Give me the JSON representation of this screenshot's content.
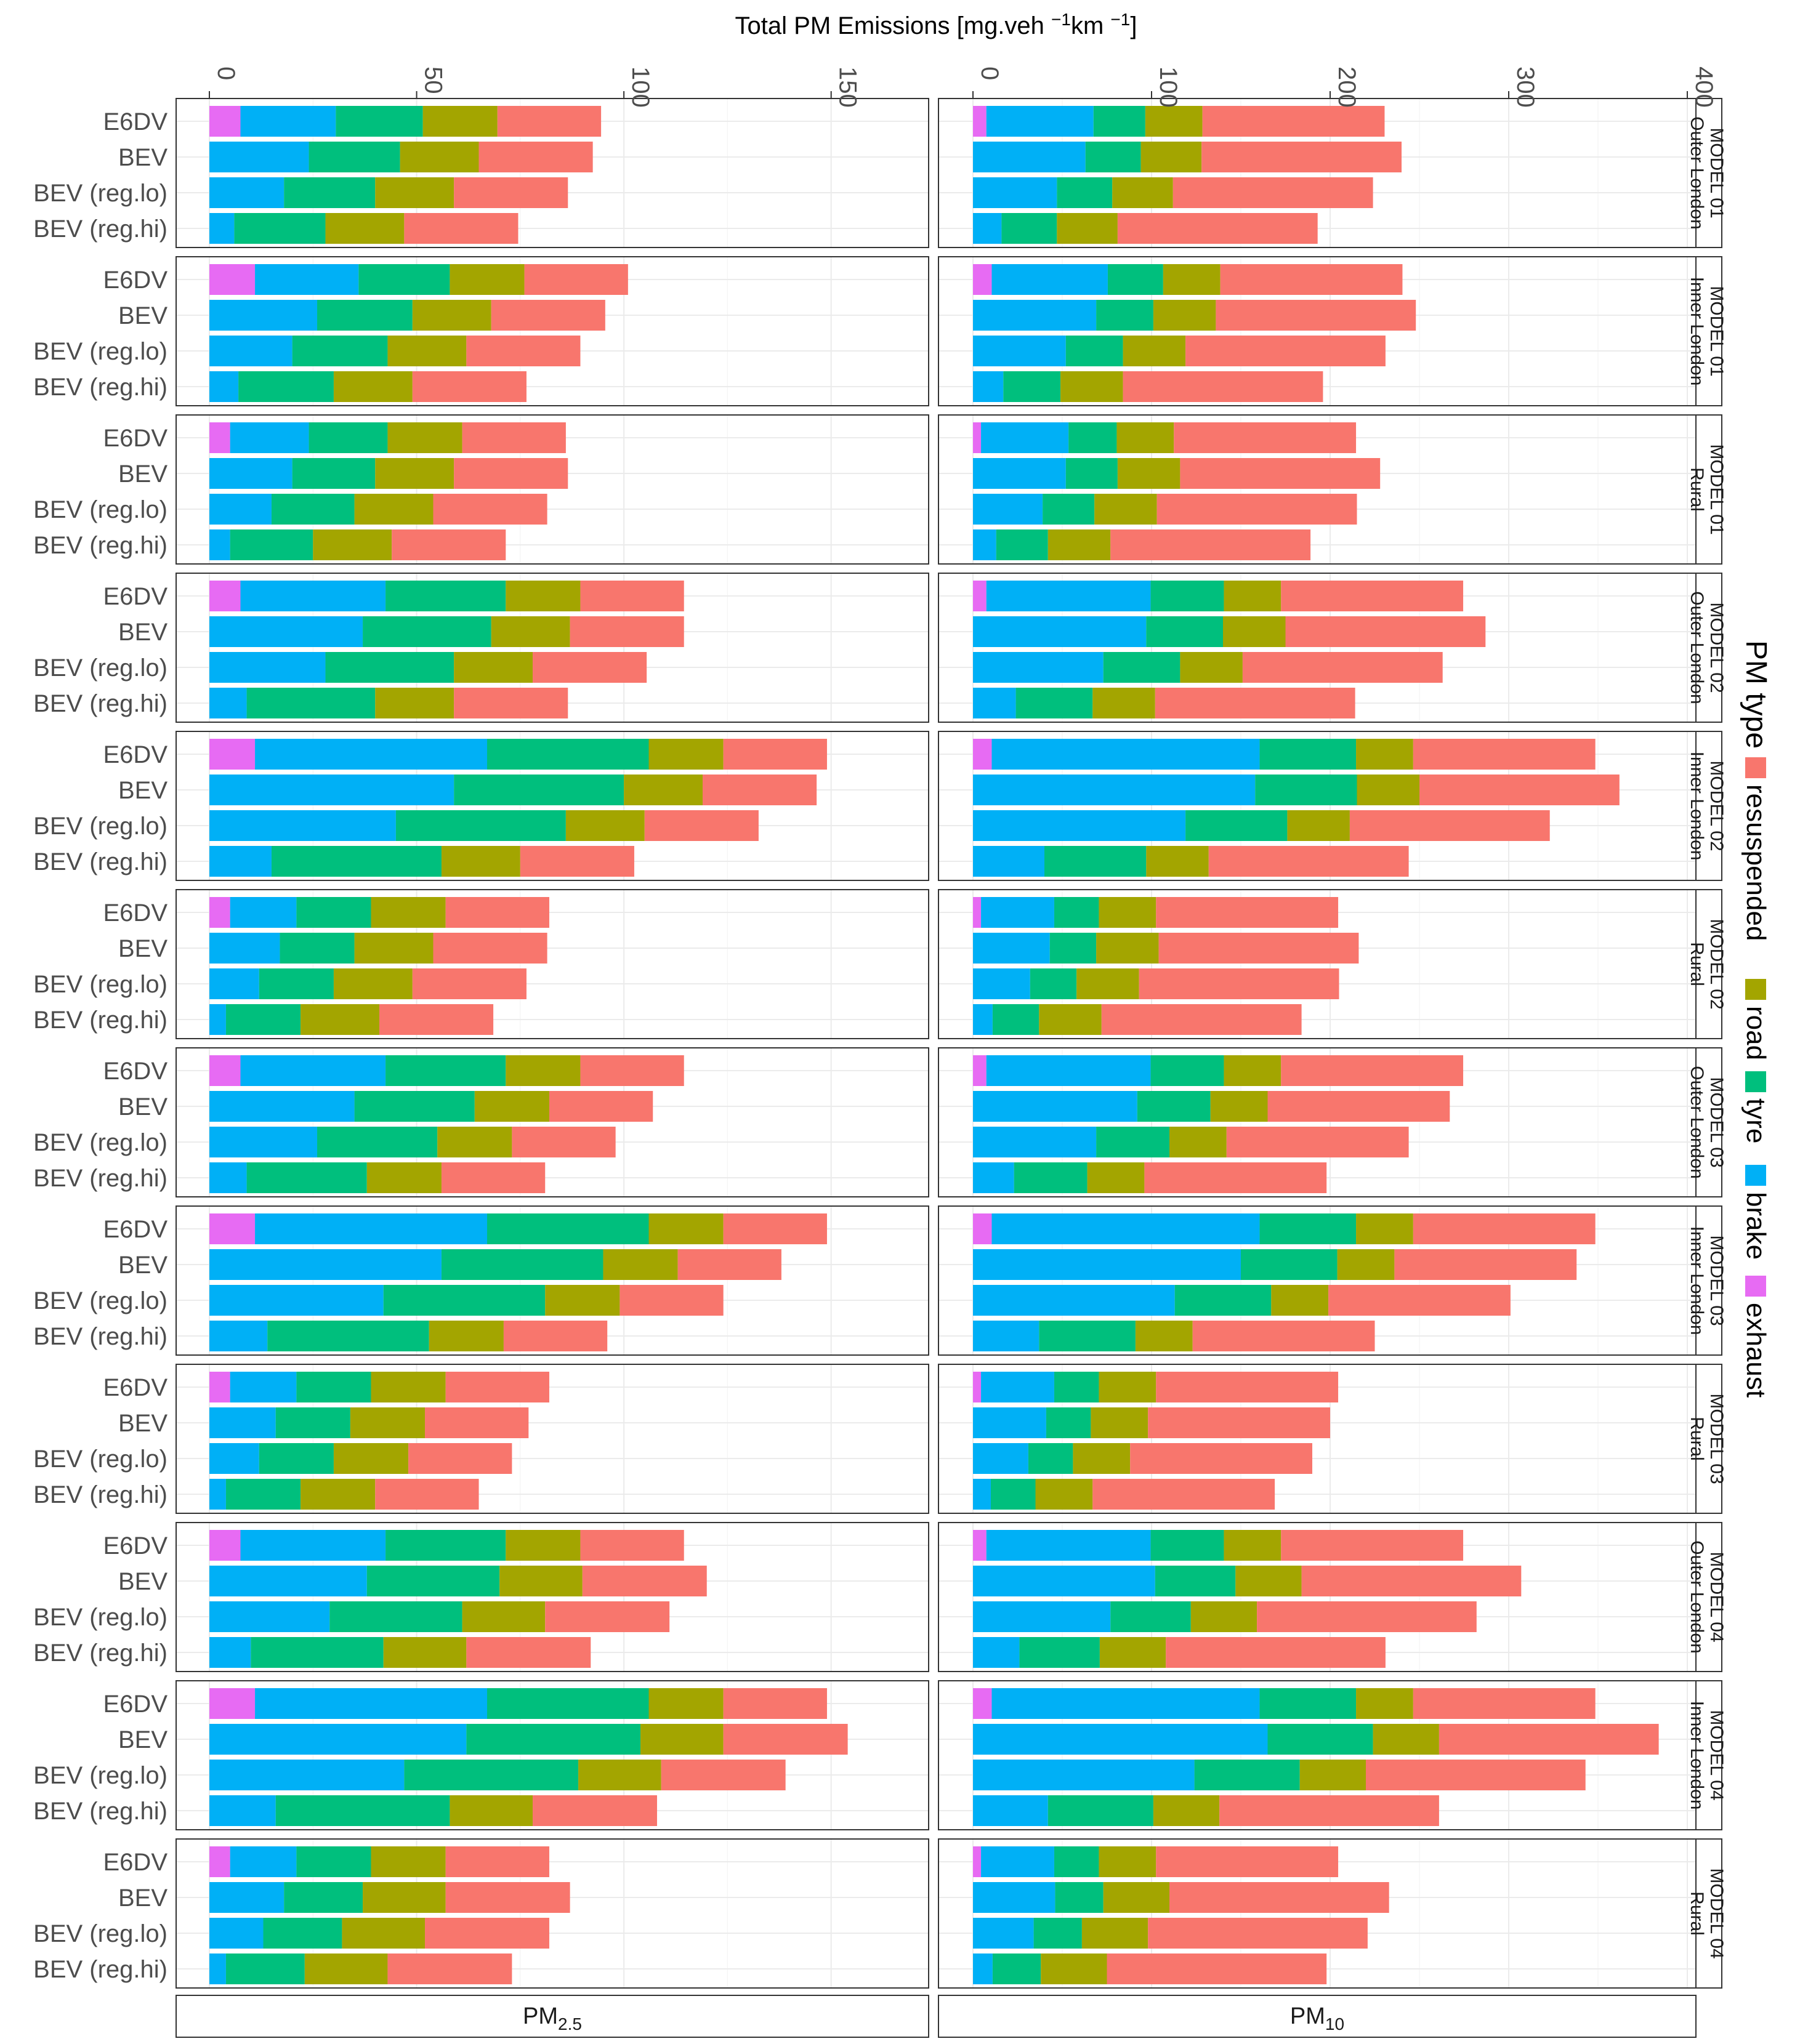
{
  "chart_data": {
    "type": "bar",
    "orientation": "horizontal-stacked",
    "title": "Total PM Emissions [mg.veh ⁻¹km ⁻¹]",
    "title_parts": {
      "pre": "Total PM Emissions [mg.veh ",
      "sup1": "−1",
      "mid": "km ",
      "sup2": "−1",
      "post": "]"
    },
    "grid": true,
    "legend": {
      "title": "PM type",
      "position": "right",
      "entries": [
        {
          "key": "resuspended",
          "label": "resuspended",
          "color": "#F8766D"
        },
        {
          "key": "road",
          "label": "road",
          "color": "#A3A500"
        },
        {
          "key": "tyre",
          "label": "tyre",
          "color": "#00BF7D"
        },
        {
          "key": "brake",
          "label": "brake",
          "color": "#00B0F6"
        },
        {
          "key": "exhaust",
          "label": "exhaust",
          "color": "#E76BF3"
        }
      ]
    },
    "stack_order": [
      "exhaust",
      "brake",
      "tyre",
      "road",
      "resuspended"
    ],
    "vehicles": [
      "E6DV",
      "BEV",
      "BEV (reg.lo)",
      "BEV (reg.hi)"
    ],
    "columns": [
      {
        "key": "pm25",
        "label_main": "PM",
        "label_sub": "2.5",
        "xlim": [
          0,
          167
        ],
        "ticks": [
          0,
          50,
          100,
          150
        ],
        "tick_labels": [
          "0",
          "50",
          "100",
          "150"
        ]
      },
      {
        "key": "pm10",
        "label_main": "PM",
        "label_sub": "10",
        "xlim": [
          0,
          400
        ],
        "ticks": [
          0,
          100,
          200,
          300,
          400
        ],
        "tick_labels": [
          "0",
          "100",
          "200",
          "300",
          "400"
        ]
      }
    ],
    "facets": [
      {
        "model": "MODEL 01",
        "area": "Outer London",
        "pm25": [
          [
            7.5,
            23,
            21,
            18,
            25
          ],
          [
            0,
            24,
            22,
            19,
            27.5
          ],
          [
            0,
            18,
            22,
            19,
            27.5
          ],
          [
            0,
            6,
            22,
            19,
            27.5
          ]
        ],
        "pm10": [
          [
            7.5,
            60,
            29,
            32,
            102
          ],
          [
            0,
            63,
            31,
            34,
            112
          ],
          [
            0,
            47,
            31,
            34,
            112
          ],
          [
            0,
            16,
            31,
            34,
            112
          ]
        ]
      },
      {
        "model": "MODEL 01",
        "area": "Inner London",
        "pm25": [
          [
            11,
            25,
            22,
            18,
            25
          ],
          [
            0,
            26,
            23,
            19,
            27.5
          ],
          [
            0,
            20,
            23,
            19,
            27.5
          ],
          [
            0,
            7,
            23,
            19,
            27.5
          ]
        ],
        "pm10": [
          [
            10.5,
            65,
            31,
            32,
            102
          ],
          [
            0,
            69,
            32,
            35,
            112
          ],
          [
            0,
            52,
            32,
            35,
            112
          ],
          [
            0,
            17,
            32,
            35,
            112
          ]
        ]
      },
      {
        "model": "MODEL 01",
        "area": "Rural",
        "pm25": [
          [
            5,
            19,
            19,
            18,
            25
          ],
          [
            0,
            20,
            20,
            19,
            27.5
          ],
          [
            0,
            15,
            20,
            19,
            27.5
          ],
          [
            0,
            5,
            20,
            19,
            27.5
          ]
        ],
        "pm10": [
          [
            4.5,
            49,
            27,
            32,
            102
          ],
          [
            0,
            52,
            29,
            35,
            112
          ],
          [
            0,
            39,
            29,
            35,
            112
          ],
          [
            0,
            13,
            29,
            35,
            112
          ]
        ]
      },
      {
        "model": "MODEL 02",
        "area": "Outer London",
        "pm25": [
          [
            7.5,
            35,
            29,
            18,
            25
          ],
          [
            0,
            37,
            31,
            19,
            27.5
          ],
          [
            0,
            28,
            31,
            19,
            27.5
          ],
          [
            0,
            9,
            31,
            19,
            27.5
          ]
        ],
        "pm10": [
          [
            7.5,
            92,
            41,
            32,
            102
          ],
          [
            0,
            97,
            43,
            35,
            112
          ],
          [
            0,
            73,
            43,
            35,
            112
          ],
          [
            0,
            24,
            43,
            35,
            112
          ]
        ]
      },
      {
        "model": "MODEL 02",
        "area": "Inner London",
        "pm25": [
          [
            11,
            56,
            39,
            18,
            25
          ],
          [
            0,
            59,
            41,
            19,
            27.5
          ],
          [
            0,
            45,
            41,
            19,
            27.5
          ],
          [
            0,
            15,
            41,
            19,
            27.5
          ]
        ],
        "pm10": [
          [
            10.5,
            150,
            54,
            32,
            102
          ],
          [
            0,
            158,
            57,
            35,
            112
          ],
          [
            0,
            119,
            57,
            35,
            112
          ],
          [
            0,
            40,
            57,
            35,
            112
          ]
        ]
      },
      {
        "model": "MODEL 02",
        "area": "Rural",
        "pm25": [
          [
            5,
            16,
            18,
            18,
            25
          ],
          [
            0,
            17,
            18,
            19,
            27.5
          ],
          [
            0,
            12,
            18,
            19,
            27.5
          ],
          [
            0,
            4,
            18,
            19,
            27.5
          ]
        ],
        "pm10": [
          [
            4.5,
            41,
            25,
            32,
            102
          ],
          [
            0,
            43,
            26,
            35,
            112
          ],
          [
            0,
            32,
            26,
            35,
            112
          ],
          [
            0,
            11,
            26,
            35,
            112
          ]
        ]
      },
      {
        "model": "MODEL 03",
        "area": "Outer London",
        "pm25": [
          [
            7.5,
            35,
            29,
            18,
            25
          ],
          [
            0,
            35,
            29,
            18,
            25
          ],
          [
            0,
            26,
            29,
            18,
            25
          ],
          [
            0,
            9,
            29,
            18,
            25
          ]
        ],
        "pm10": [
          [
            7.5,
            92,
            41,
            32,
            102
          ],
          [
            0,
            92,
            41,
            32,
            102
          ],
          [
            0,
            69,
            41,
            32,
            102
          ],
          [
            0,
            23,
            41,
            32,
            102
          ]
        ]
      },
      {
        "model": "MODEL 03",
        "area": "Inner London",
        "pm25": [
          [
            11,
            56,
            39,
            18,
            25
          ],
          [
            0,
            56,
            39,
            18,
            25
          ],
          [
            0,
            42,
            39,
            18,
            25
          ],
          [
            0,
            14,
            39,
            18,
            25
          ]
        ],
        "pm10": [
          [
            10.5,
            150,
            54,
            32,
            102
          ],
          [
            0,
            150,
            54,
            32,
            102
          ],
          [
            0,
            113,
            54,
            32,
            102
          ],
          [
            0,
            37,
            54,
            32,
            102
          ]
        ]
      },
      {
        "model": "MODEL 03",
        "area": "Rural",
        "pm25": [
          [
            5,
            16,
            18,
            18,
            25
          ],
          [
            0,
            16,
            18,
            18,
            25
          ],
          [
            0,
            12,
            18,
            18,
            25
          ],
          [
            0,
            4,
            18,
            18,
            25
          ]
        ],
        "pm10": [
          [
            4.5,
            41,
            25,
            32,
            102
          ],
          [
            0,
            41,
            25,
            32,
            102
          ],
          [
            0,
            31,
            25,
            32,
            102
          ],
          [
            0,
            10,
            25,
            32,
            102
          ]
        ]
      },
      {
        "model": "MODEL 04",
        "area": "Outer London",
        "pm25": [
          [
            7.5,
            35,
            29,
            18,
            25
          ],
          [
            0,
            38,
            32,
            20,
            30
          ],
          [
            0,
            29,
            32,
            20,
            30
          ],
          [
            0,
            10,
            32,
            20,
            30
          ]
        ],
        "pm10": [
          [
            7.5,
            92,
            41,
            32,
            102
          ],
          [
            0,
            102,
            45,
            37,
            123
          ],
          [
            0,
            77,
            45,
            37,
            123
          ],
          [
            0,
            26,
            45,
            37,
            123
          ]
        ]
      },
      {
        "model": "MODEL 04",
        "area": "Inner London",
        "pm25": [
          [
            11,
            56,
            39,
            18,
            25
          ],
          [
            0,
            62,
            42,
            20,
            30
          ],
          [
            0,
            47,
            42,
            20,
            30
          ],
          [
            0,
            16,
            42,
            20,
            30
          ]
        ],
        "pm10": [
          [
            10.5,
            150,
            54,
            32,
            102
          ],
          [
            0,
            165,
            59,
            37,
            123
          ],
          [
            0,
            124,
            59,
            37,
            123
          ],
          [
            0,
            42,
            59,
            37,
            123
          ]
        ]
      },
      {
        "model": "MODEL 04",
        "area": "Rural",
        "pm25": [
          [
            5,
            16,
            18,
            18,
            25
          ],
          [
            0,
            18,
            19,
            20,
            30
          ],
          [
            0,
            13,
            19,
            20,
            30
          ],
          [
            0,
            4,
            19,
            20,
            30
          ]
        ],
        "pm10": [
          [
            4.5,
            41,
            25,
            32,
            102
          ],
          [
            0,
            46,
            27,
            37,
            123
          ],
          [
            0,
            34,
            27,
            37,
            123
          ],
          [
            0,
            11,
            27,
            37,
            123
          ]
        ]
      }
    ]
  }
}
